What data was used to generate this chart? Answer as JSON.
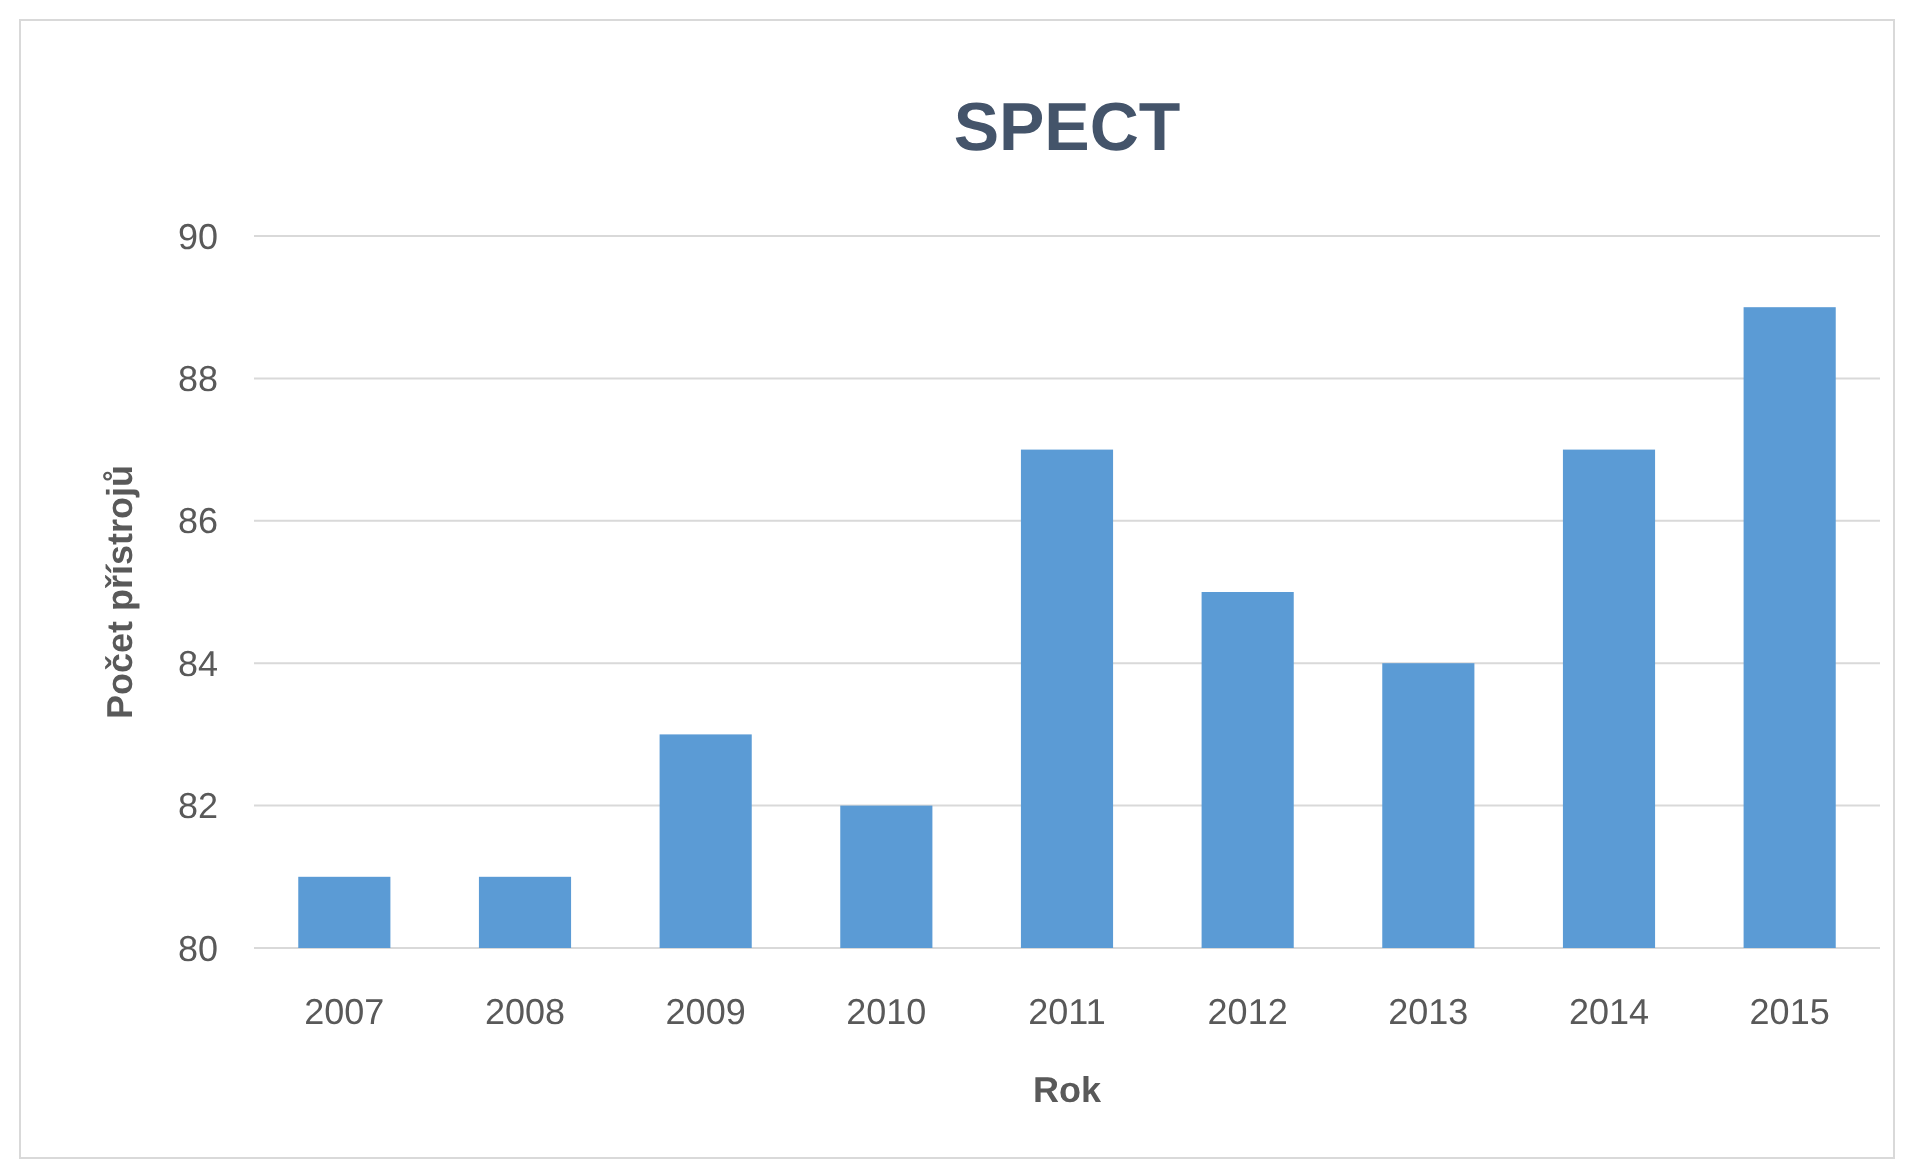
{
  "chart_data": {
    "type": "bar",
    "title": "SPECT",
    "xlabel": "Rok",
    "ylabel": "Počet přístrojů",
    "categories": [
      "2007",
      "2008",
      "2009",
      "2010",
      "2011",
      "2012",
      "2013",
      "2014",
      "2015"
    ],
    "values": [
      81,
      81,
      83,
      82,
      87,
      85,
      84,
      87,
      89
    ],
    "color": "#5b9bd5",
    "ylim": [
      80,
      90
    ],
    "yticks": [
      80,
      82,
      84,
      86,
      88,
      90
    ],
    "grid": "y"
  }
}
